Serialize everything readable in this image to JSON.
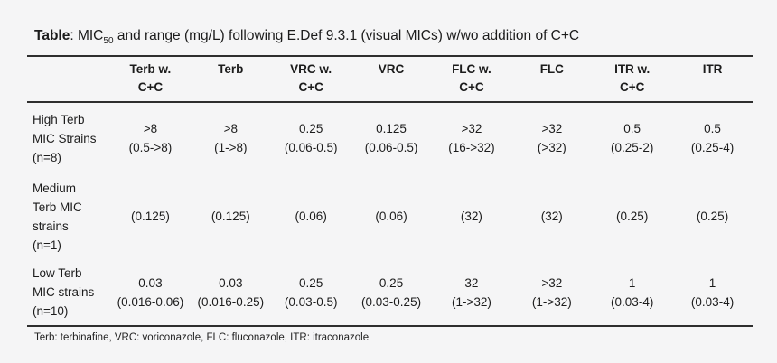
{
  "page": {
    "background_color": "#f5f5f6",
    "text_color": "#1c1c1c",
    "rule_color": "#2e2e2e"
  },
  "title": {
    "label": "Table",
    "sep": ": ",
    "mic": "MIC",
    "mic_subscript": "50",
    "rest": " and range (mg/L) following E.Def 9.3.1 (visual MICs) w/wo addition of C+C"
  },
  "table": {
    "header": [
      {
        "l1": "",
        "l2": ""
      },
      {
        "l1": "Terb w.",
        "l2": "C+C"
      },
      {
        "l1": "Terb",
        "l2": ""
      },
      {
        "l1": "VRC w.",
        "l2": "C+C"
      },
      {
        "l1": "VRC",
        "l2": ""
      },
      {
        "l1": "FLC w.",
        "l2": "C+C"
      },
      {
        "l1": "FLC",
        "l2": ""
      },
      {
        "l1": "ITR w.",
        "l2": "C+C"
      },
      {
        "l1": "ITR",
        "l2": ""
      }
    ],
    "rows": [
      {
        "label_lines": [
          "High Terb",
          "MIC Strains",
          "(n=8)"
        ],
        "cells": [
          {
            "mic": ">8",
            "range": "(0.5->8)"
          },
          {
            "mic": ">8",
            "range": "(1->8)"
          },
          {
            "mic": "0.25",
            "range": "(0.06-0.5)"
          },
          {
            "mic": "0.125",
            "range": "(0.06-0.5)"
          },
          {
            "mic": ">32",
            "range": "(16->32)"
          },
          {
            "mic": ">32",
            "range": "(>32)"
          },
          {
            "mic": "0.5",
            "range": "(0.25-2)"
          },
          {
            "mic": "0.5",
            "range": "(0.25-4)"
          }
        ]
      },
      {
        "label_lines": [
          "Medium",
          "Terb MIC",
          "strains",
          "(n=1)"
        ],
        "cells": [
          {
            "mic": "(0.125)",
            "range": ""
          },
          {
            "mic": "(0.125)",
            "range": ""
          },
          {
            "mic": "(0.06)",
            "range": ""
          },
          {
            "mic": "(0.06)",
            "range": ""
          },
          {
            "mic": "(32)",
            "range": ""
          },
          {
            "mic": "(32)",
            "range": ""
          },
          {
            "mic": "(0.25)",
            "range": ""
          },
          {
            "mic": "(0.25)",
            "range": ""
          }
        ]
      },
      {
        "label_lines": [
          "Low Terb",
          "MIC strains",
          "(n=10)"
        ],
        "cells": [
          {
            "mic": "0.03",
            "range": "(0.016-0.06)"
          },
          {
            "mic": "0.03",
            "range": "(0.016-0.25)"
          },
          {
            "mic": "0.25",
            "range": "(0.03-0.5)"
          },
          {
            "mic": "0.25",
            "range": "(0.03-0.25)"
          },
          {
            "mic": "32",
            "range": "(1->32)"
          },
          {
            "mic": ">32",
            "range": "(1->32)"
          },
          {
            "mic": "1",
            "range": "(0.03-4)"
          },
          {
            "mic": "1",
            "range": "(0.03-4)"
          }
        ]
      }
    ]
  },
  "footnote": "Terb: terbinafine, VRC: voriconazole, FLC: fluconazole, ITR: itraconazole"
}
